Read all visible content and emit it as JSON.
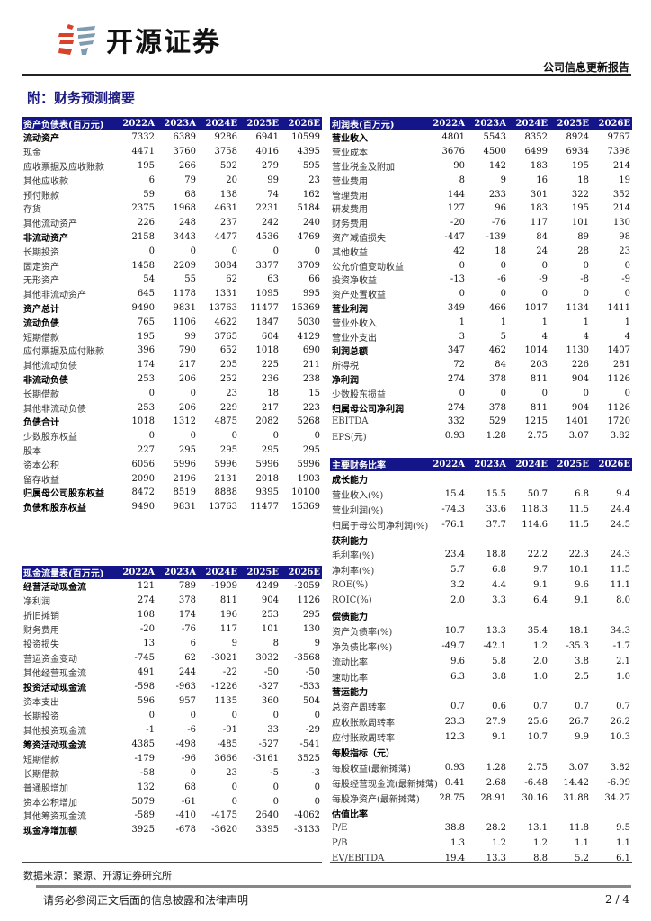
{
  "header": {
    "brand": "开源证券",
    "report_type": "公司信息更新报告"
  },
  "section_title": "附：财务预测摘要",
  "years": [
    "2022A",
    "2023A",
    "2024E",
    "2025E",
    "2026E"
  ],
  "colors": {
    "header_bg": "#15158a",
    "title": "#1a1a80",
    "logo_red": "#d9412b",
    "logo_blue": "#7f9bb0"
  },
  "balance_sheet": {
    "title": "资产负债表(百万元)",
    "rows": [
      {
        "label": "流动资产",
        "bold": true,
        "v": [
          "7332",
          "6389",
          "9286",
          "6941",
          "10599"
        ]
      },
      {
        "label": "现金",
        "v": [
          "4471",
          "3760",
          "3758",
          "4016",
          "4395"
        ]
      },
      {
        "label": "应收票据及应收账款",
        "v": [
          "195",
          "266",
          "502",
          "279",
          "595"
        ]
      },
      {
        "label": "其他应收款",
        "v": [
          "6",
          "79",
          "20",
          "99",
          "23"
        ]
      },
      {
        "label": "预付账款",
        "v": [
          "59",
          "68",
          "138",
          "74",
          "162"
        ]
      },
      {
        "label": "存货",
        "v": [
          "2375",
          "1968",
          "4631",
          "2231",
          "5184"
        ]
      },
      {
        "label": "其他流动资产",
        "v": [
          "226",
          "248",
          "237",
          "242",
          "240"
        ]
      },
      {
        "label": "非流动资产",
        "bold": true,
        "v": [
          "2158",
          "3443",
          "4477",
          "4536",
          "4769"
        ]
      },
      {
        "label": "长期投资",
        "v": [
          "0",
          "0",
          "0",
          "0",
          "0"
        ]
      },
      {
        "label": "固定资产",
        "v": [
          "1458",
          "2209",
          "3084",
          "3377",
          "3709"
        ]
      },
      {
        "label": "无形资产",
        "v": [
          "54",
          "55",
          "62",
          "63",
          "66"
        ]
      },
      {
        "label": "其他非流动资产",
        "v": [
          "645",
          "1178",
          "1331",
          "1095",
          "995"
        ]
      },
      {
        "label": "资产总计",
        "bold": true,
        "v": [
          "9490",
          "9831",
          "13763",
          "11477",
          "15369"
        ]
      },
      {
        "label": "流动负债",
        "bold": true,
        "v": [
          "765",
          "1106",
          "4622",
          "1847",
          "5030"
        ]
      },
      {
        "label": "短期借款",
        "v": [
          "195",
          "99",
          "3765",
          "604",
          "4129"
        ]
      },
      {
        "label": "应付票据及应付账款",
        "v": [
          "396",
          "790",
          "652",
          "1018",
          "690"
        ]
      },
      {
        "label": "其他流动负债",
        "v": [
          "174",
          "217",
          "205",
          "225",
          "211"
        ]
      },
      {
        "label": "非流动负债",
        "bold": true,
        "v": [
          "253",
          "206",
          "252",
          "236",
          "238"
        ]
      },
      {
        "label": "长期借款",
        "v": [
          "0",
          "0",
          "23",
          "18",
          "15"
        ]
      },
      {
        "label": "其他非流动负债",
        "v": [
          "253",
          "206",
          "229",
          "217",
          "223"
        ]
      },
      {
        "label": "负债合计",
        "bold": true,
        "v": [
          "1018",
          "1312",
          "4875",
          "2082",
          "5268"
        ]
      },
      {
        "label": "少数股东权益",
        "v": [
          "0",
          "0",
          "0",
          "0",
          "0"
        ]
      },
      {
        "label": "股本",
        "v": [
          "227",
          "295",
          "295",
          "295",
          "295"
        ]
      },
      {
        "label": "资本公积",
        "v": [
          "6056",
          "5996",
          "5996",
          "5996",
          "5996"
        ]
      },
      {
        "label": "留存收益",
        "v": [
          "2090",
          "2196",
          "2131",
          "2018",
          "1903"
        ]
      },
      {
        "label": "归属母公司股东权益",
        "bold": true,
        "v": [
          "8472",
          "8519",
          "8888",
          "9395",
          "10100"
        ]
      },
      {
        "label": "负债和股东权益",
        "bold": true,
        "v": [
          "9490",
          "9831",
          "13763",
          "11477",
          "15369"
        ]
      }
    ]
  },
  "income_statement": {
    "title": "利润表(百万元)",
    "rows": [
      {
        "label": "营业收入",
        "bold": true,
        "v": [
          "4801",
          "5543",
          "8352",
          "8924",
          "9767"
        ]
      },
      {
        "label": "营业成本",
        "v": [
          "3676",
          "4500",
          "6499",
          "6934",
          "7398"
        ]
      },
      {
        "label": "营业税金及附加",
        "v": [
          "90",
          "142",
          "183",
          "195",
          "214"
        ]
      },
      {
        "label": "营业费用",
        "v": [
          "8",
          "9",
          "16",
          "18",
          "19"
        ]
      },
      {
        "label": "管理费用",
        "v": [
          "144",
          "233",
          "301",
          "322",
          "352"
        ]
      },
      {
        "label": "研发费用",
        "v": [
          "127",
          "96",
          "183",
          "195",
          "214"
        ]
      },
      {
        "label": "财务费用",
        "v": [
          "-20",
          "-76",
          "117",
          "101",
          "130"
        ]
      },
      {
        "label": "资产减值损失",
        "v": [
          "-447",
          "-139",
          "84",
          "89",
          "98"
        ]
      },
      {
        "label": "其他收益",
        "v": [
          "42",
          "18",
          "24",
          "28",
          "23"
        ]
      },
      {
        "label": "公允价值变动收益",
        "v": [
          "0",
          "0",
          "0",
          "0",
          "0"
        ]
      },
      {
        "label": "投资净收益",
        "v": [
          "-13",
          "-6",
          "-9",
          "-8",
          "-9"
        ]
      },
      {
        "label": "资产处置收益",
        "v": [
          "0",
          "0",
          "0",
          "0",
          "0"
        ]
      },
      {
        "label": "营业利润",
        "bold": true,
        "v": [
          "349",
          "466",
          "1017",
          "1134",
          "1411"
        ]
      },
      {
        "label": "营业外收入",
        "v": [
          "1",
          "1",
          "1",
          "1",
          "1"
        ]
      },
      {
        "label": "营业外支出",
        "v": [
          "3",
          "5",
          "4",
          "4",
          "4"
        ]
      },
      {
        "label": "利润总额",
        "bold": true,
        "v": [
          "347",
          "462",
          "1014",
          "1130",
          "1407"
        ]
      },
      {
        "label": "所得税",
        "v": [
          "72",
          "84",
          "203",
          "226",
          "281"
        ]
      },
      {
        "label": "净利润",
        "bold": true,
        "v": [
          "274",
          "378",
          "811",
          "904",
          "1126"
        ]
      },
      {
        "label": "少数股东损益",
        "v": [
          "0",
          "0",
          "0",
          "0",
          "0"
        ]
      },
      {
        "label": "归属母公司净利润",
        "bold": true,
        "v": [
          "274",
          "378",
          "811",
          "904",
          "1126"
        ]
      },
      {
        "label": "EBITDA",
        "v": [
          "332",
          "529",
          "1215",
          "1401",
          "1720"
        ]
      },
      {
        "label": "EPS(元)",
        "v": [
          "0.93",
          "1.28",
          "2.75",
          "3.07",
          "3.82"
        ]
      }
    ]
  },
  "financial_ratios": {
    "title": "主要财务比率",
    "rows": [
      {
        "label": "成长能力",
        "group": true,
        "v": []
      },
      {
        "label": "营业收入(%)",
        "v": [
          "15.4",
          "15.5",
          "50.7",
          "6.8",
          "9.4"
        ]
      },
      {
        "label": "营业利润(%)",
        "v": [
          "-74.3",
          "33.6",
          "118.3",
          "11.5",
          "24.4"
        ]
      },
      {
        "label": "归属于母公司净利润(%)",
        "v": [
          "-76.1",
          "37.7",
          "114.6",
          "11.5",
          "24.5"
        ]
      },
      {
        "label": "获利能力",
        "group": true,
        "v": []
      },
      {
        "label": "毛利率(%)",
        "v": [
          "23.4",
          "18.8",
          "22.2",
          "22.3",
          "24.3"
        ]
      },
      {
        "label": "净利率(%)",
        "v": [
          "5.7",
          "6.8",
          "9.7",
          "10.1",
          "11.5"
        ]
      },
      {
        "label": "ROE(%)",
        "v": [
          "3.2",
          "4.4",
          "9.1",
          "9.6",
          "11.1"
        ]
      },
      {
        "label": "ROIC(%)",
        "v": [
          "2.0",
          "3.3",
          "6.4",
          "9.1",
          "8.0"
        ]
      },
      {
        "label": "偿债能力",
        "group": true,
        "v": []
      },
      {
        "label": "资产负债率(%)",
        "v": [
          "10.7",
          "13.3",
          "35.4",
          "18.1",
          "34.3"
        ]
      },
      {
        "label": "净负债比率(%)",
        "v": [
          "-49.7",
          "-42.1",
          "1.2",
          "-35.3",
          "-1.7"
        ]
      },
      {
        "label": "流动比率",
        "v": [
          "9.6",
          "5.8",
          "2.0",
          "3.8",
          "2.1"
        ]
      },
      {
        "label": "速动比率",
        "v": [
          "6.3",
          "3.8",
          "1.0",
          "2.5",
          "1.0"
        ]
      },
      {
        "label": "营运能力",
        "group": true,
        "v": []
      },
      {
        "label": "总资产周转率",
        "v": [
          "0.7",
          "0.6",
          "0.7",
          "0.7",
          "0.7"
        ]
      },
      {
        "label": "应收账款周转率",
        "v": [
          "23.3",
          "27.9",
          "25.6",
          "26.7",
          "26.2"
        ]
      },
      {
        "label": "应付账款周转率",
        "v": [
          "12.3",
          "9.1",
          "10.7",
          "9.9",
          "10.3"
        ]
      },
      {
        "label": "每股指标（元）",
        "group": true,
        "v": []
      },
      {
        "label": "每股收益(最新摊薄)",
        "v": [
          "0.93",
          "1.28",
          "2.75",
          "3.07",
          "3.82"
        ]
      },
      {
        "label": "每股经营现金流(最新摊薄)",
        "v": [
          "0.41",
          "2.68",
          "-6.48",
          "14.42",
          "-6.99"
        ]
      },
      {
        "label": "每股净资产(最新摊薄)",
        "v": [
          "28.75",
          "28.91",
          "30.16",
          "31.88",
          "34.27"
        ]
      },
      {
        "label": "估值比率",
        "group": true,
        "v": []
      },
      {
        "label": "P/E",
        "v": [
          "38.8",
          "28.2",
          "13.1",
          "11.8",
          "9.5"
        ]
      },
      {
        "label": "P/B",
        "v": [
          "1.3",
          "1.2",
          "1.2",
          "1.1",
          "1.1"
        ]
      },
      {
        "label": "EV/EBITDA",
        "v": [
          "19.4",
          "13.3",
          "8.8",
          "5.2",
          "6.1"
        ]
      }
    ]
  },
  "cash_flow": {
    "title": "现金流量表(百万元)",
    "rows": [
      {
        "label": "经营活动现金流",
        "bold": true,
        "v": [
          "121",
          "789",
          "-1909",
          "4249",
          "-2059"
        ]
      },
      {
        "label": "净利润",
        "v": [
          "274",
          "378",
          "811",
          "904",
          "1126"
        ]
      },
      {
        "label": "折旧摊销",
        "v": [
          "108",
          "174",
          "196",
          "253",
          "295"
        ]
      },
      {
        "label": "财务费用",
        "v": [
          "-20",
          "-76",
          "117",
          "101",
          "130"
        ]
      },
      {
        "label": "投资损失",
        "v": [
          "13",
          "6",
          "9",
          "8",
          "9"
        ]
      },
      {
        "label": "营运资金变动",
        "v": [
          "-745",
          "62",
          "-3021",
          "3032",
          "-3568"
        ]
      },
      {
        "label": "其他经营现金流",
        "v": [
          "491",
          "244",
          "-22",
          "-50",
          "-50"
        ]
      },
      {
        "label": "投资活动现金流",
        "bold": true,
        "v": [
          "-598",
          "-963",
          "-1226",
          "-327",
          "-533"
        ]
      },
      {
        "label": "资本支出",
        "v": [
          "596",
          "957",
          "1135",
          "360",
          "504"
        ]
      },
      {
        "label": "长期投资",
        "v": [
          "0",
          "0",
          "0",
          "0",
          "0"
        ]
      },
      {
        "label": "其他投资现金流",
        "v": [
          "-1",
          "-6",
          "-91",
          "33",
          "-29"
        ]
      },
      {
        "label": "筹资活动现金流",
        "bold": true,
        "v": [
          "4385",
          "-498",
          "-485",
          "-527",
          "-541"
        ]
      },
      {
        "label": "短期借款",
        "v": [
          "-179",
          "-96",
          "3666",
          "-3161",
          "3525"
        ]
      },
      {
        "label": "长期借款",
        "v": [
          "-58",
          "0",
          "23",
          "-5",
          "-3"
        ]
      },
      {
        "label": "普通股增加",
        "v": [
          "132",
          "68",
          "0",
          "0",
          "0"
        ]
      },
      {
        "label": "资本公积增加",
        "v": [
          "5079",
          "-61",
          "0",
          "0",
          "0"
        ]
      },
      {
        "label": "其他筹资现金流",
        "v": [
          "-589",
          "-410",
          "-4175",
          "2640",
          "-4062"
        ]
      },
      {
        "label": "现金净增加额",
        "bold": true,
        "v": [
          "3925",
          "-678",
          "-3620",
          "3395",
          "-3133"
        ]
      }
    ]
  },
  "footer": {
    "source": "数据来源：聚源、开源证券研究所",
    "disclaimer": "请务必参阅正文后面的信息披露和法律声明",
    "page": "2 / 4"
  }
}
